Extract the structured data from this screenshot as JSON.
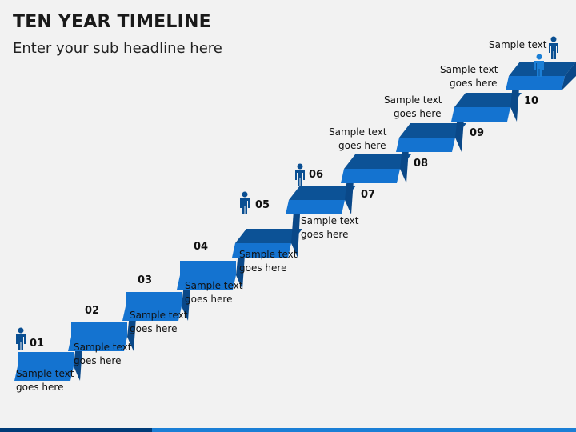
{
  "title": "TEN YEAR TIMELINE",
  "subtitle": "Enter your sub headline here",
  "colors": {
    "tread_top": "#0c5296",
    "tread_front": "#1473d0",
    "riser": "#0d5cab",
    "riser_dark": "#0a4888",
    "person": "#0a4f92",
    "bottom_bar_dark": "#003c78",
    "bottom_bar_light": "#1b7fd6"
  },
  "steps": [
    {
      "number": "01",
      "line1": "Sample text",
      "line2": "goes here"
    },
    {
      "number": "02",
      "line1": "Sample text",
      "line2": "goes here"
    },
    {
      "number": "03",
      "line1": "Sample text",
      "line2": "goes here"
    },
    {
      "number": "04",
      "line1": "Sample text",
      "line2": "goes here"
    },
    {
      "number": "05",
      "line1": "Sample text",
      "line2": "goes here"
    },
    {
      "number": "06",
      "line1": "Sample text",
      "line2": "goes here"
    },
    {
      "number": "07",
      "line1": "Sample text",
      "line2": "goes here"
    },
    {
      "number": "08",
      "line1": "Sample text",
      "line2": "goes here"
    },
    {
      "number": "09",
      "line1": "Sample text",
      "line2": "goes here"
    },
    {
      "number": "10",
      "line1": "Sample text",
      "line2": ""
    }
  ],
  "icons": [
    "person-icon"
  ]
}
